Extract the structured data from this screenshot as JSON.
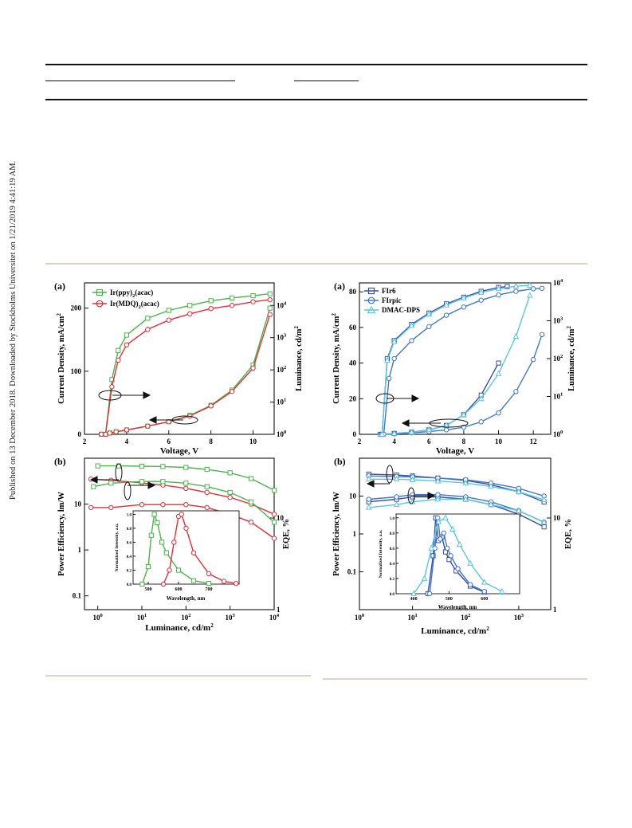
{
  "sidebar_note": "Published on 13 December 2018. Downloaded by Stockholms Universitet on 1/21/2019 4:41:19 AM.",
  "colors": {
    "green": "#4db34d",
    "red": "#e0303a",
    "blue_dark": "#3a4fa8",
    "blue_mid": "#3f78c8",
    "cyan": "#5cc6e0"
  },
  "left_figure": {
    "panel_a": {
      "label": "(a)",
      "xlabel": "Voltage, V",
      "ylabel": "Current Density, mA/cm",
      "ylabel_sup": "2",
      "y2label": "Luminance, cd/m",
      "y2label_sup": "2",
      "legend": [
        {
          "name": "Ir(ppy)",
          "sub": "2",
          "rest": "(acac)"
        },
        {
          "name": "Ir(MDQ)",
          "sub": "2",
          "rest": "(acac)"
        }
      ],
      "xticks": [
        "2",
        "4",
        "6",
        "8",
        "10"
      ],
      "yticks": [
        "0",
        "100",
        "200"
      ],
      "y2ticks": [
        {
          "b": "10",
          "e": "0"
        },
        {
          "b": "10",
          "e": "1"
        },
        {
          "b": "10",
          "e": "2"
        },
        {
          "b": "10",
          "e": "3"
        },
        {
          "b": "10",
          "e": "4"
        }
      ]
    },
    "panel_b": {
      "label": "(b)",
      "xlabel": "Luminance, cd/m",
      "xlabel_sup": "2",
      "ylabel": "Power Efficiency, lm/W",
      "y2label": "EQE, %",
      "xticks": [
        {
          "b": "10",
          "e": "0"
        },
        {
          "b": "10",
          "e": "1"
        },
        {
          "b": "10",
          "e": "2"
        },
        {
          "b": "10",
          "e": "3"
        },
        {
          "b": "10",
          "e": "4"
        }
      ],
      "yticks": [
        "0.1",
        "1",
        "10"
      ],
      "y2ticks": [
        "1",
        "10"
      ],
      "inset": {
        "xlabel": "Wavelength, nm",
        "ylabel": "Normalized Intensity, a.u.",
        "xticks": [
          "500",
          "600",
          "700"
        ],
        "yticks": [
          "0.0",
          "0.2",
          "0.4",
          "0.6",
          "0.8",
          "1.0"
        ]
      }
    }
  },
  "right_figure": {
    "panel_a": {
      "label": "(a)",
      "xlabel": "Voltage, V",
      "ylabel": "Current Density, mA/cm",
      "ylabel_sup": "2",
      "y2label": "Luminance, cd/m",
      "y2label_sup": "2",
      "legend": [
        "FIr6",
        "FIrpic",
        "DMAC-DPS"
      ],
      "xticks": [
        "2",
        "4",
        "6",
        "8",
        "10",
        "12"
      ],
      "yticks": [
        "0",
        "20",
        "40",
        "60",
        "80"
      ],
      "y2ticks": [
        {
          "b": "10",
          "e": "0"
        },
        {
          "b": "10",
          "e": "1"
        },
        {
          "b": "10",
          "e": "2"
        },
        {
          "b": "10",
          "e": "3"
        },
        {
          "b": "10",
          "e": "4"
        }
      ]
    },
    "panel_b": {
      "label": "(b)",
      "xlabel": "Luminance, cd/m",
      "xlabel_sup": "2",
      "ylabel": "Power Efficiency, lm/W",
      "y2label": "EQE, %",
      "xticks": [
        {
          "b": "10",
          "e": "0"
        },
        {
          "b": "10",
          "e": "1"
        },
        {
          "b": "10",
          "e": "2"
        },
        {
          "b": "10",
          "e": "3"
        }
      ],
      "yticks": [
        "0.1",
        "1",
        "10"
      ],
      "y2ticks": [
        "1",
        "10"
      ],
      "inset": {
        "xlabel": "Wavelength, nm",
        "ylabel": "Normalized Intensity, a.u.",
        "xticks": [
          "400",
          "500",
          "600"
        ],
        "yticks": [
          "0.0",
          "0.2",
          "0.4",
          "0.6",
          "0.8",
          "1.0"
        ]
      }
    }
  },
  "chart_data": [
    {
      "type": "line",
      "panel": "left (a)",
      "x_unit": "V",
      "y_unit": "mA/cm2",
      "y2_unit": "cd/m2",
      "xlim": [
        2,
        11
      ],
      "ylim": [
        0,
        240
      ],
      "y2lim": [
        1,
        50000
      ],
      "y2_scale": "log",
      "series": [
        {
          "name": "Ir(ppy)2(acac)",
          "axis": "current",
          "x": [
            2.8,
            3.2,
            3.5,
            4,
            5,
            6,
            7,
            8,
            9,
            10,
            10.8
          ],
          "values": [
            0.2,
            2,
            4,
            7,
            13,
            20,
            30,
            46,
            70,
            110,
            200
          ]
        },
        {
          "name": "Ir(MDQ)2(acac)",
          "axis": "current",
          "x": [
            2.8,
            3.2,
            3.5,
            4,
            5,
            6,
            7,
            8,
            9,
            10,
            10.8
          ],
          "values": [
            0.2,
            2,
            4,
            7,
            13,
            20,
            29,
            45,
            68,
            105,
            190
          ]
        },
        {
          "name": "Ir(ppy)2(acac)",
          "axis": "luminance",
          "x": [
            3,
            3.3,
            3.6,
            4,
            5,
            6,
            7,
            8,
            9,
            10,
            10.8
          ],
          "values": [
            1,
            50,
            400,
            1200,
            4000,
            7000,
            10000,
            14000,
            17000,
            20000,
            23000
          ]
        },
        {
          "name": "Ir(MDQ)2(acac)",
          "axis": "luminance",
          "x": [
            3,
            3.3,
            3.6,
            4,
            5,
            6,
            7,
            8,
            9,
            10,
            10.8
          ],
          "values": [
            1,
            30,
            200,
            600,
            1800,
            3500,
            5500,
            8000,
            10000,
            13000,
            15000
          ]
        }
      ]
    },
    {
      "type": "line",
      "panel": "left (b)",
      "x_unit": "cd/m2",
      "x_scale": "log",
      "y_scale": "log",
      "xlim": [
        0.5,
        10000
      ],
      "ylim": [
        0.05,
        100
      ],
      "y2lim": [
        1,
        100
      ],
      "series": [
        {
          "name": "Ir(ppy)2(acac)",
          "axis": "power efficiency",
          "x": [
            1,
            3,
            10,
            30,
            100,
            300,
            1000,
            3000,
            10000
          ],
          "values": [
            68,
            68,
            67,
            66,
            63,
            57,
            48,
            36,
            20
          ]
        },
        {
          "name": "Ir(MDQ)2(acac)",
          "axis": "power efficiency",
          "x": [
            0.7,
            2,
            10,
            30,
            100,
            300,
            1000,
            3000,
            10000
          ],
          "values": [
            35,
            33,
            29,
            26,
            22,
            18,
            14,
            10,
            6
          ]
        },
        {
          "name": "Ir(ppy)2(acac)",
          "axis": "EQE",
          "x": [
            0.8,
            2,
            10,
            30,
            100,
            300,
            1000,
            3000,
            10000
          ],
          "values": [
            22,
            24,
            25,
            25,
            24,
            22,
            19,
            15,
            9
          ]
        },
        {
          "name": "Ir(MDQ)2(acac)",
          "axis": "EQE",
          "x": [
            0.7,
            2,
            10,
            30,
            100,
            300,
            1000,
            3000,
            10000
          ],
          "values": [
            13,
            13,
            14,
            14,
            14,
            13,
            11,
            9,
            6
          ]
        }
      ]
    },
    {
      "type": "line",
      "panel": "left (b) inset",
      "x_unit": "nm",
      "xlim": [
        450,
        800
      ],
      "ylim": [
        0,
        1.05
      ],
      "series": [
        {
          "name": "Ir(ppy)2(acac)",
          "x": [
            480,
            500,
            510,
            520,
            530,
            545,
            560,
            600,
            650,
            700
          ],
          "values": [
            0,
            0.25,
            0.7,
            1,
            0.88,
            0.6,
            0.45,
            0.2,
            0.05,
            0.01
          ]
        },
        {
          "name": "Ir(MDQ)2(acac)",
          "x": [
            550,
            570,
            585,
            600,
            610,
            625,
            650,
            700,
            750,
            790
          ],
          "values": [
            0,
            0.2,
            0.6,
            0.97,
            1,
            0.8,
            0.45,
            0.15,
            0.04,
            0.01
          ]
        }
      ]
    },
    {
      "type": "line",
      "panel": "right (a)",
      "x_unit": "V",
      "y_unit": "mA/cm2",
      "y2_unit": "cd/m2",
      "xlim": [
        2,
        13
      ],
      "ylim": [
        0,
        85
      ],
      "y2lim": [
        1,
        10000
      ],
      "y2_scale": "log",
      "series": [
        {
          "name": "FIr6",
          "axis": "current",
          "x": [
            3.2,
            4,
            5,
            6,
            7,
            8,
            9,
            10
          ],
          "values": [
            0,
            0.5,
            1.2,
            2.5,
            5,
            11,
            22,
            40
          ]
        },
        {
          "name": "FIrpic",
          "axis": "current",
          "x": [
            3.2,
            4,
            5,
            6,
            7,
            8,
            9,
            10,
            11,
            12,
            12.5
          ],
          "values": [
            0,
            0.3,
            0.8,
            1.5,
            2.5,
            4,
            7,
            12,
            24,
            42,
            56
          ]
        },
        {
          "name": "DMAC-DPS",
          "axis": "current",
          "x": [
            3.2,
            4,
            5,
            6,
            7,
            8,
            9,
            10,
            11,
            11.8
          ],
          "values": [
            0,
            0.5,
            1.2,
            2.5,
            5,
            11,
            20,
            34,
            55,
            78
          ]
        },
        {
          "name": "FIr6",
          "axis": "luminance",
          "x": [
            3.3,
            3.6,
            4,
            5,
            6,
            7,
            8,
            9,
            10,
            10.5
          ],
          "values": [
            1,
            100,
            300,
            800,
            1600,
            2800,
            4200,
            6000,
            7600,
            8000
          ]
        },
        {
          "name": "FIrpic",
          "axis": "luminance",
          "x": [
            3.4,
            3.7,
            4,
            5,
            6,
            7,
            8,
            9,
            10,
            11,
            12,
            12.5
          ],
          "values": [
            1,
            30,
            100,
            300,
            700,
            1400,
            2300,
            3500,
            4800,
            6000,
            7000,
            7200
          ]
        },
        {
          "name": "DMAC-DPS",
          "axis": "luminance",
          "x": [
            3.3,
            3.6,
            4,
            5,
            6,
            7,
            8,
            9,
            10,
            11,
            11.8
          ],
          "values": [
            1,
            90,
            280,
            750,
            1500,
            2600,
            4000,
            5600,
            7000,
            8200,
            8600
          ]
        }
      ]
    },
    {
      "type": "line",
      "panel": "right (b)",
      "x_unit": "cd/m2",
      "x_scale": "log",
      "y_scale": "log",
      "xlim": [
        1,
        4000
      ],
      "ylim": [
        0.01,
        100
      ],
      "y2lim": [
        1,
        100
      ],
      "series": [
        {
          "name": "FIr6",
          "axis": "power efficiency",
          "x": [
            1.5,
            5,
            10,
            30,
            100,
            300,
            1000,
            3000
          ],
          "values": [
            38,
            36,
            34,
            30,
            26,
            20,
            13,
            7
          ]
        },
        {
          "name": "FIrpic",
          "axis": "power efficiency",
          "x": [
            1.5,
            5,
            10,
            30,
            100,
            300,
            1000,
            3000
          ],
          "values": [
            34,
            33,
            32,
            30,
            27,
            22,
            16,
            10
          ]
        },
        {
          "name": "DMAC-DPS",
          "axis": "power efficiency",
          "x": [
            1.5,
            5,
            10,
            30,
            100,
            300,
            1000,
            3000
          ],
          "values": [
            28,
            28,
            27,
            25,
            22,
            18,
            13,
            8
          ]
        },
        {
          "name": "FIr6",
          "axis": "EQE",
          "x": [
            1.5,
            5,
            10,
            30,
            100,
            300,
            1000,
            3000
          ],
          "values": [
            15,
            16,
            17,
            17,
            16,
            14,
            11,
            8
          ]
        },
        {
          "name": "FIrpic",
          "axis": "EQE",
          "x": [
            1.5,
            5,
            10,
            30,
            100,
            300,
            1000,
            3000
          ],
          "values": [
            16,
            17,
            18,
            18,
            17,
            15,
            12,
            9
          ]
        },
        {
          "name": "DMAC-DPS",
          "axis": "EQE",
          "x": [
            1.5,
            5,
            10,
            30,
            100,
            300,
            1000,
            3000
          ],
          "values": [
            13,
            14,
            15,
            16,
            16,
            14,
            12,
            9
          ]
        }
      ]
    },
    {
      "type": "line",
      "panel": "right (b) inset",
      "x_unit": "nm",
      "xlim": [
        350,
        700
      ],
      "ylim": [
        0,
        1.05
      ],
      "series": [
        {
          "name": "FIr6",
          "x": [
            440,
            455,
            462,
            470,
            480,
            490,
            500,
            520,
            560,
            600
          ],
          "values": [
            0,
            0.5,
            1,
            0.7,
            0.75,
            0.55,
            0.45,
            0.3,
            0.1,
            0.02
          ]
        },
        {
          "name": "FIrpic",
          "x": [
            445,
            460,
            468,
            475,
            485,
            495,
            505,
            525,
            560,
            600
          ],
          "values": [
            0,
            0.6,
            1,
            0.72,
            0.8,
            0.6,
            0.5,
            0.33,
            0.12,
            0.03
          ]
        },
        {
          "name": "DMAC-DPS",
          "x": [
            400,
            430,
            450,
            470,
            490,
            510,
            530,
            560,
            600,
            650
          ],
          "values": [
            0,
            0.2,
            0.6,
            0.95,
            1,
            0.85,
            0.65,
            0.4,
            0.15,
            0.03
          ]
        }
      ]
    }
  ]
}
